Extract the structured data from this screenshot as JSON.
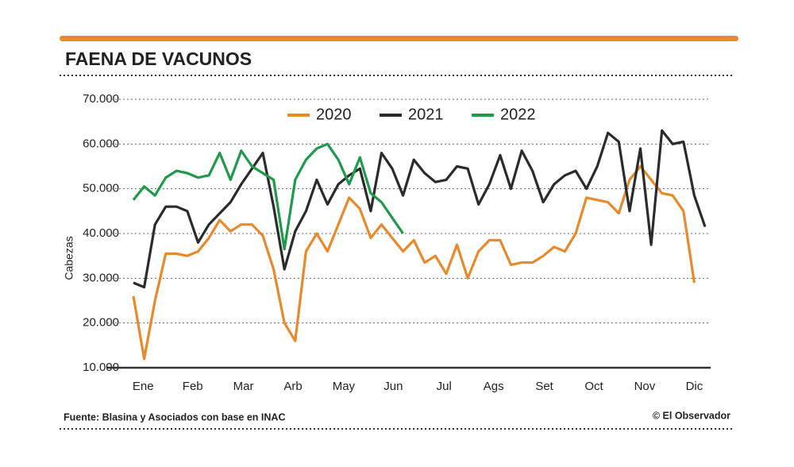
{
  "chart_data": {
    "type": "line",
    "title": "FAENA DE VACUNOS",
    "ylabel": "Cabezas",
    "source": "Fuente: Blasina y Asociados con base en INAC",
    "credit": "© El Observador",
    "x": [
      1,
      2,
      3,
      4,
      5,
      6,
      7,
      8,
      9,
      10,
      11,
      12,
      13,
      14,
      15,
      16,
      17,
      18,
      19,
      20,
      21,
      22,
      23,
      24,
      25,
      26,
      27,
      28,
      29,
      30,
      31,
      32,
      33,
      34,
      35,
      36,
      37,
      38,
      39,
      40,
      41,
      42,
      43,
      44,
      45,
      46,
      47,
      48,
      49,
      50,
      51,
      52,
      53,
      54
    ],
    "xlim": [
      1,
      54
    ],
    "xticks": [
      {
        "value": 1.9,
        "label": "Ene"
      },
      {
        "value": 6.5,
        "label": "Feb"
      },
      {
        "value": 11.2,
        "label": "Mar"
      },
      {
        "value": 15.8,
        "label": "Arb"
      },
      {
        "value": 20.5,
        "label": "May"
      },
      {
        "value": 25.1,
        "label": "Jun"
      },
      {
        "value": 29.8,
        "label": "Jul"
      },
      {
        "value": 34.4,
        "label": "Ags"
      },
      {
        "value": 39.1,
        "label": "Set"
      },
      {
        "value": 43.7,
        "label": "Oct"
      },
      {
        "value": 48.4,
        "label": "Nov"
      },
      {
        "value": 53.0,
        "label": "Dic"
      }
    ],
    "ylim": [
      10000,
      70000
    ],
    "yticks": [
      {
        "value": 10000,
        "label": "10.000"
      },
      {
        "value": 20000,
        "label": "20.000"
      },
      {
        "value": 30000,
        "label": "30.000"
      },
      {
        "value": 40000,
        "label": "40.000"
      },
      {
        "value": 50000,
        "label": "50.000"
      },
      {
        "value": 60000,
        "label": "60.000"
      },
      {
        "value": 70000,
        "label": "70.000"
      }
    ],
    "grid": true,
    "legend": "top",
    "series": [
      {
        "name": "2020",
        "color": "#e8892b",
        "values": [
          26000,
          12000,
          25000,
          35500,
          35500,
          35000,
          36000,
          39000,
          43000,
          40500,
          42000,
          42000,
          39500,
          32000,
          20000,
          16000,
          36000,
          40000,
          36000,
          42000,
          48000,
          45500,
          39000,
          42000,
          39000,
          36000,
          38500,
          33500,
          35000,
          31000,
          37500,
          30000,
          36000,
          38500,
          38500,
          33000,
          33500,
          33500,
          35000,
          37000,
          36000,
          40000,
          48000,
          47500,
          47000,
          44500,
          52000,
          55000,
          52000,
          49000,
          48500,
          45000,
          29000,
          null
        ]
      },
      {
        "name": "2021",
        "color": "#2b2b2b",
        "values": [
          29000,
          28000,
          42000,
          46000,
          46000,
          45000,
          38000,
          42000,
          44500,
          47000,
          51000,
          54500,
          58000,
          46000,
          32000,
          40500,
          45000,
          52000,
          46500,
          51000,
          53000,
          54500,
          45000,
          58000,
          54500,
          48500,
          56500,
          53500,
          51500,
          52000,
          55000,
          54500,
          46500,
          51000,
          57500,
          50000,
          58500,
          54000,
          47000,
          51000,
          53000,
          54000,
          50000,
          55000,
          62500,
          60500,
          45000,
          59000,
          37500,
          63000,
          60000,
          60500,
          48500,
          41500
        ]
      },
      {
        "name": "2022",
        "color": "#1e9a4a",
        "values": [
          47500,
          50500,
          48500,
          52500,
          54000,
          53500,
          52500,
          53000,
          58000,
          52000,
          58500,
          55000,
          53500,
          52000,
          36500,
          52000,
          56500,
          59000,
          60000,
          56500,
          51000,
          57000,
          49000,
          47000,
          43500,
          40000,
          null,
          null,
          null,
          null,
          null,
          null,
          null,
          null,
          null,
          null,
          null,
          null,
          null,
          null,
          null,
          null,
          null,
          null,
          null,
          null,
          null,
          null,
          null,
          null,
          null,
          null,
          null,
          null
        ]
      }
    ]
  }
}
